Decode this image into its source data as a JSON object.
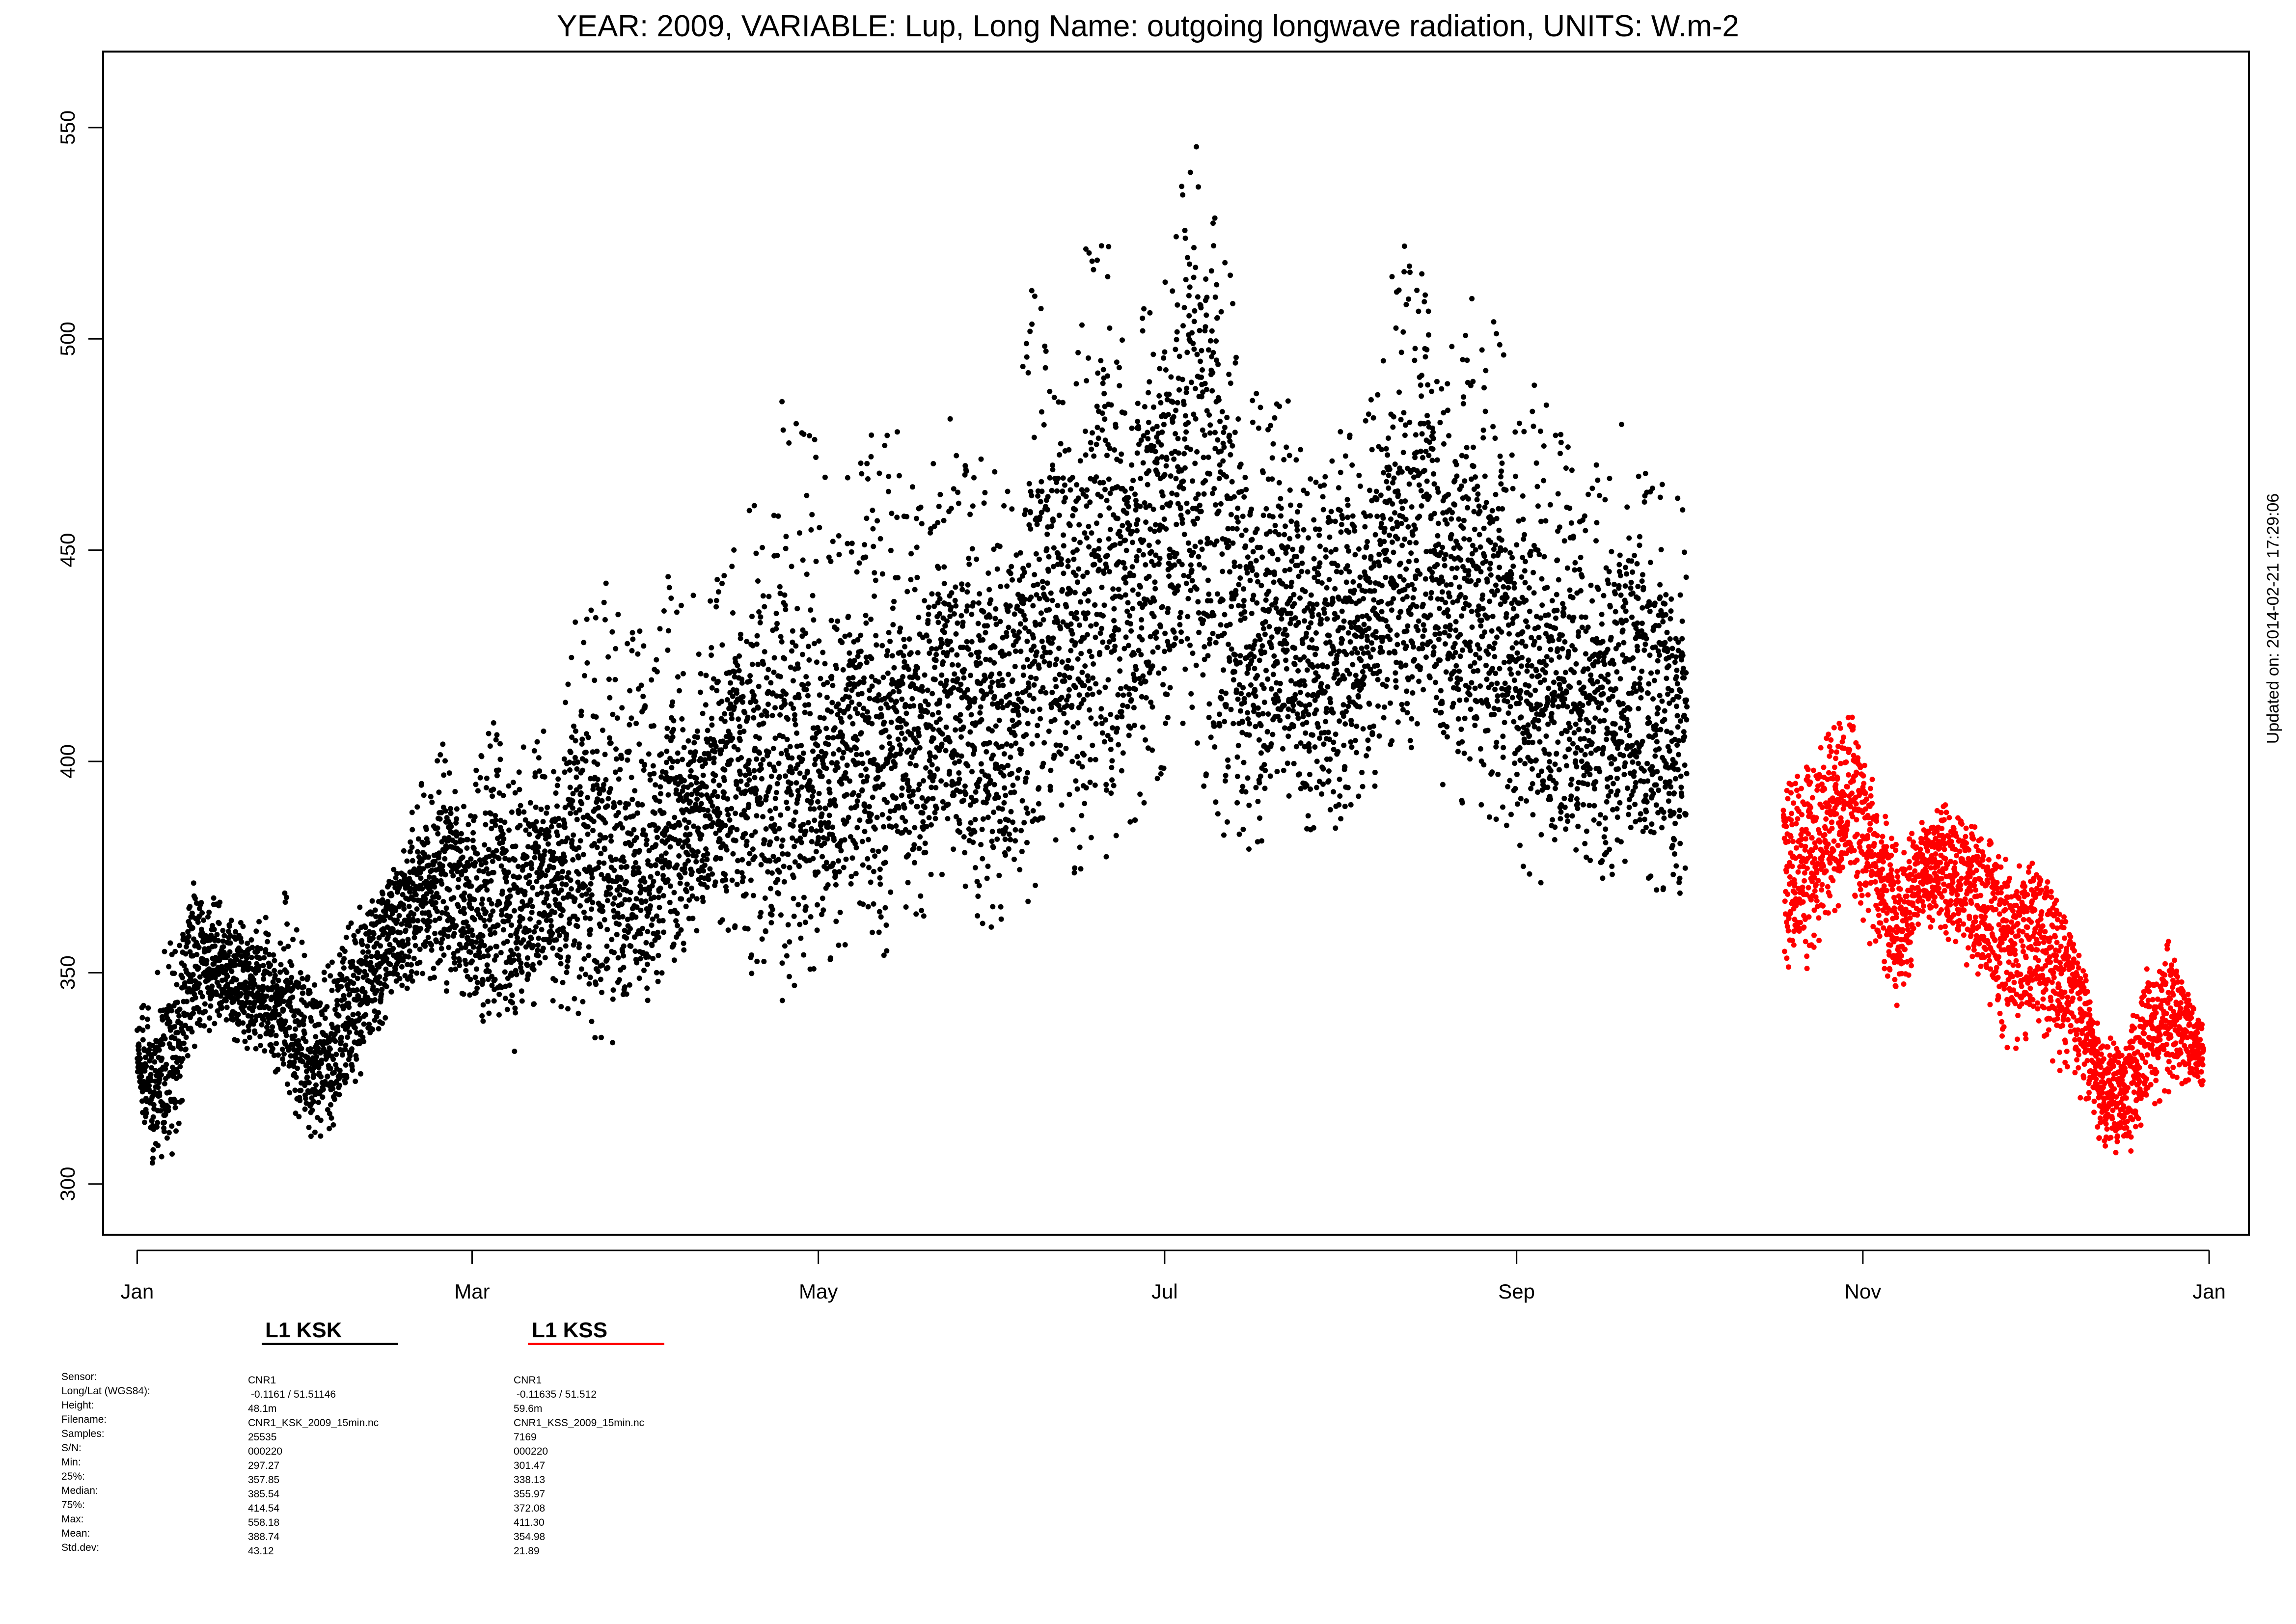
{
  "title": "YEAR: 2009, VARIABLE: Lup, Long Name: outgoing  longwave  radiation, UNITS: W.m-2",
  "updated": "Updated on: 2014-02-21 17:29:06",
  "colors": {
    "ksk": "#000000",
    "kss": "#ff0000"
  },
  "legend": [
    {
      "name": "L1 KSK",
      "color": "#000000"
    },
    {
      "name": "L1 KSS",
      "color": "#ff0000"
    }
  ],
  "stats": {
    "labels": [
      "Sensor:",
      "Long/Lat (WGS84):",
      "Height:",
      "Filename:",
      "Samples:",
      "S/N:",
      "Min:",
      "25%:",
      "Median:",
      "75%:",
      "Max:",
      "Mean:",
      "Std.dev:"
    ],
    "ksk": [
      "CNR1",
      " -0.1161 / 51.51146",
      "48.1m",
      "CNR1_KSK_2009_15min.nc",
      "25535",
      "000220",
      "297.27",
      "357.85",
      "385.54",
      "414.54",
      "558.18",
      "388.74",
      "43.12"
    ],
    "kss": [
      "CNR1",
      " -0.11635 / 51.512",
      "59.6m",
      "CNR1_KSS_2009_15min.nc",
      "7169",
      "000220",
      "301.47",
      "338.13",
      "355.97",
      "372.08",
      "411.30",
      "354.98",
      "21.89"
    ]
  },
  "chart_data": {
    "type": "scatter",
    "title": "YEAR: 2009, VARIABLE: Lup, Long Name: outgoing  longwave  radiation, UNITS: W.m-2",
    "xlabel": "",
    "ylabel": "",
    "x_ticks": [
      "Jan",
      "Mar",
      "May",
      "Jul",
      "Sep",
      "Nov",
      "Jan"
    ],
    "x_tick_days": [
      0,
      59,
      120,
      181,
      243,
      304,
      365
    ],
    "y_ticks": [
      300,
      350,
      400,
      450,
      500,
      550
    ],
    "xlim": [
      -6,
      372
    ],
    "ylim": [
      288,
      568
    ],
    "grid": false,
    "series": [
      {
        "name": "L1 KSK",
        "color": "#000000",
        "day": [
          0,
          3,
          6,
          10,
          14,
          18,
          22,
          26,
          30,
          34,
          38,
          42,
          46,
          50,
          54,
          58,
          62,
          66,
          70,
          74,
          78,
          82,
          86,
          90,
          94,
          98,
          102,
          106,
          110,
          114,
          118,
          122,
          126,
          130,
          134,
          138,
          142,
          146,
          150,
          154,
          158,
          162,
          166,
          170,
          174,
          178,
          182,
          186,
          190,
          194,
          198,
          202,
          206,
          210,
          214,
          218,
          222,
          226,
          230,
          234,
          238,
          242,
          246,
          250,
          254,
          258,
          262,
          266,
          270,
          273
        ],
        "low": [
          322,
          300,
          305,
          332,
          338,
          332,
          330,
          322,
          308,
          312,
          318,
          335,
          342,
          350,
          345,
          340,
          333,
          328,
          342,
          340,
          336,
          333,
          330,
          338,
          352,
          356,
          360,
          358,
          340,
          342,
          348,
          345,
          355,
          352,
          356,
          362,
          372,
          366,
          358,
          362,
          368,
          372,
          374,
          376,
          380,
          392,
          400,
          398,
          380,
          375,
          378,
          388,
          382,
          378,
          390,
          392,
          395,
          398,
          392,
          388,
          382,
          380,
          370,
          368,
          374,
          372,
          372,
          370,
          366,
          368
        ],
        "high": [
          345,
          352,
          358,
          372,
          368,
          364,
          362,
          375,
          352,
          352,
          365,
          368,
          378,
          395,
          405,
          388,
          412,
          400,
          410,
          408,
          440,
          445,
          430,
          438,
          448,
          440,
          445,
          452,
          470,
          492,
          480,
          472,
          468,
          480,
          482,
          460,
          490,
          470,
          474,
          468,
          535,
          500,
          525,
          532,
          500,
          510,
          525,
          558,
          545,
          500,
          485,
          490,
          470,
          480,
          478,
          488,
          525,
          518,
          495,
          510,
          522,
          485,
          490,
          480,
          478,
          472,
          482,
          470,
          464,
          462
        ],
        "mid": [
          326,
          315,
          328,
          352,
          350,
          346,
          342,
          336,
          328,
          328,
          338,
          352,
          360,
          366,
          370,
          362,
          360,
          358,
          364,
          368,
          372,
          368,
          364,
          364,
          380,
          378,
          388,
          392,
          386,
          392,
          388,
          384,
          392,
          390,
          392,
          396,
          408,
          402,
          396,
          400,
          418,
          416,
          426,
          434,
          428,
          440,
          452,
          460,
          446,
          425,
          420,
          425,
          415,
          418,
          425,
          428,
          438,
          440,
          432,
          428,
          430,
          418,
          410,
          405,
          408,
          405,
          410,
          405,
          400,
          398
        ]
      },
      {
        "name": "L1 KSS",
        "color": "#ff0000",
        "day": [
          290,
          294,
          298,
          302,
          306,
          310,
          314,
          318,
          322,
          326,
          330,
          334,
          338,
          342,
          346,
          350,
          354,
          358,
          362,
          364
        ],
        "low": [
          345,
          350,
          362,
          368,
          352,
          340,
          358,
          360,
          352,
          342,
          330,
          335,
          328,
          318,
          310,
          304,
          316,
          322,
          325,
          318
        ],
        "high": [
          402,
          400,
          408,
          411,
          395,
          380,
          386,
          390,
          388,
          382,
          376,
          378,
          372,
          360,
          338,
          332,
          352,
          358,
          342,
          338
        ],
        "mid": [
          372,
          376,
          385,
          392,
          372,
          356,
          370,
          374,
          370,
          362,
          352,
          356,
          350,
          338,
          322,
          318,
          332,
          338,
          335,
          330
        ]
      }
    ]
  }
}
